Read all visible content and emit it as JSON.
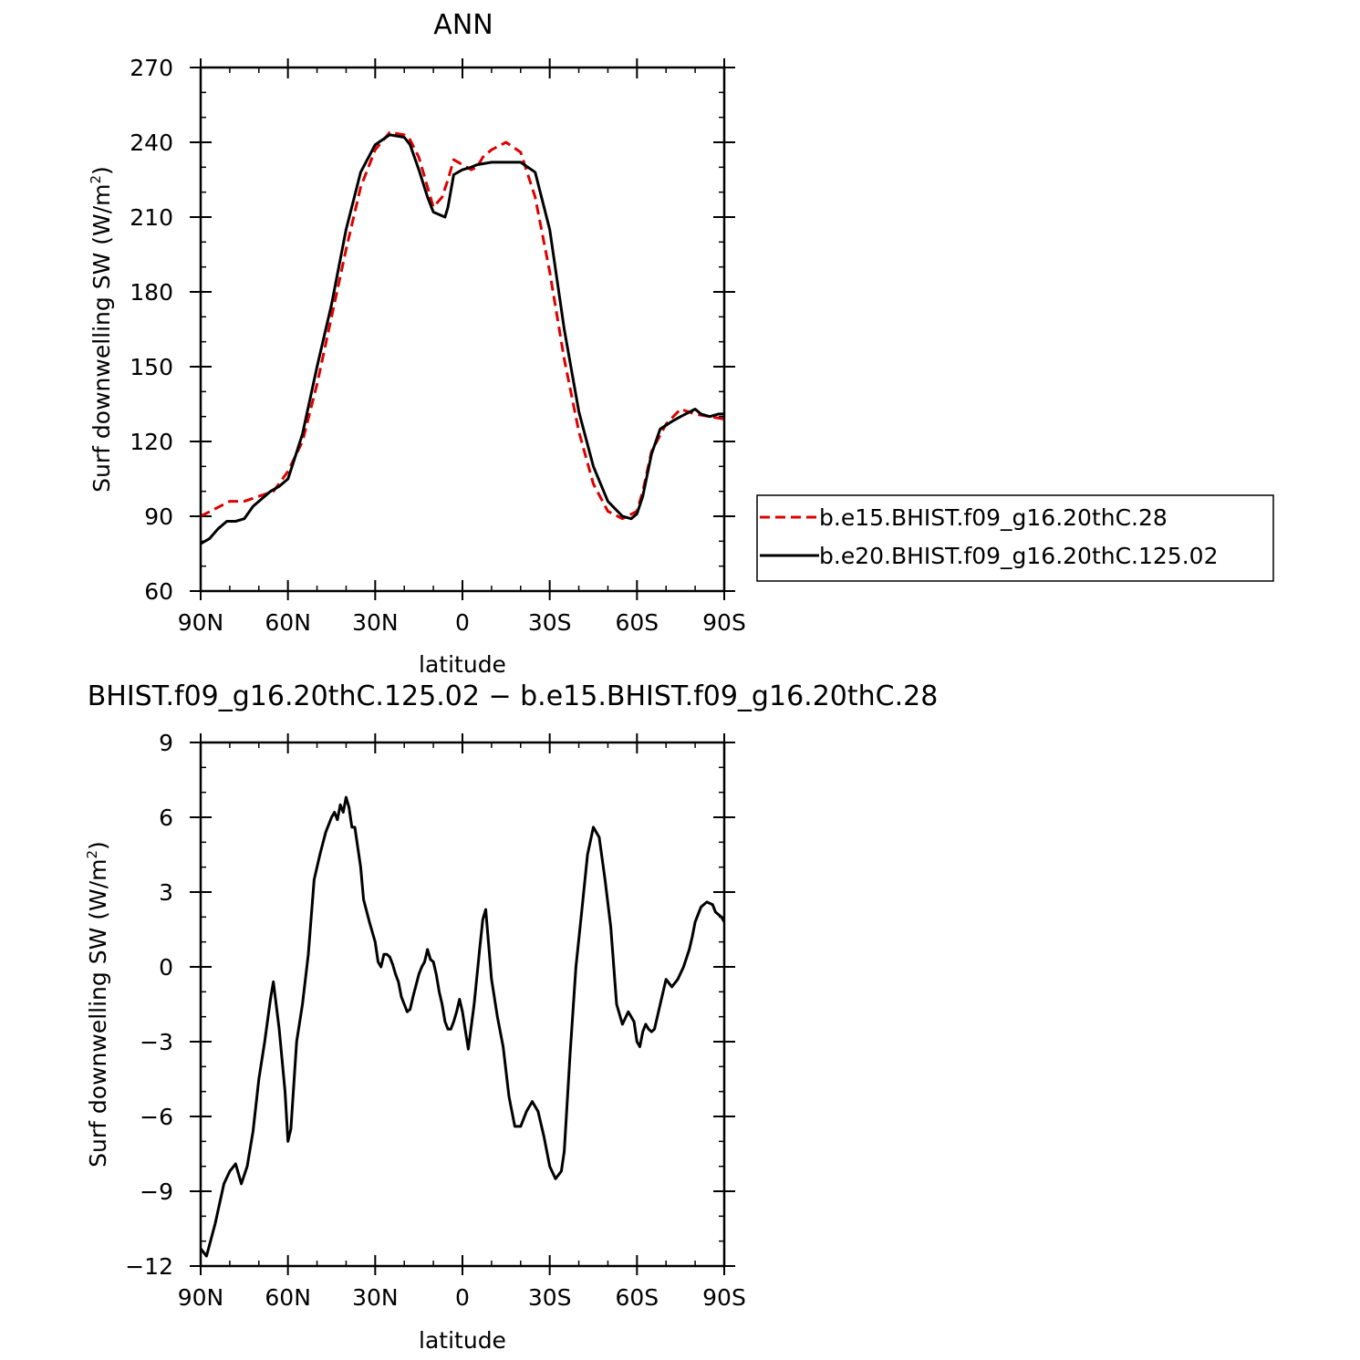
{
  "chart_data": [
    {
      "type": "line",
      "title": "ANN",
      "xlabel": "latitude",
      "ylabel": "Surf downwelling SW (W/m²)",
      "ylabel_main": "Surf downwelling SW (W/m",
      "ylabel_sup": "2",
      "ylabel_close": ")",
      "xlim": [
        90,
        -90
      ],
      "ylim": [
        60,
        270
      ],
      "xticks": [
        90,
        60,
        30,
        0,
        -30,
        -60,
        -90
      ],
      "xtick_labels": [
        "90N",
        "60N",
        "30N",
        "0",
        "30S",
        "60S",
        "90S"
      ],
      "yticks": [
        60,
        90,
        120,
        150,
        180,
        210,
        240,
        270
      ],
      "ytick_labels": [
        "60",
        "90",
        "120",
        "150",
        "180",
        "210",
        "240",
        "270"
      ],
      "legend": {
        "placement": "right",
        "entries": [
          "b.e15.BHIST.f09_g16.20thC.28",
          "b.e20.BHIST.f09_g16.20thC.125.02"
        ]
      },
      "series": [
        {
          "name": "b.e15.BHIST.f09_g16.20thC.28",
          "color": "#dd0000",
          "dash": "dashed",
          "x": [
            90,
            85,
            80,
            75,
            70,
            65,
            60,
            55,
            50,
            45,
            40,
            35,
            30,
            25,
            20,
            18,
            15,
            10,
            7,
            5,
            3,
            0,
            -3,
            -5,
            -7,
            -10,
            -15,
            -20,
            -25,
            -30,
            -35,
            -40,
            -45,
            -50,
            -55,
            -60,
            -62,
            -65,
            -70,
            -75,
            -80,
            -85,
            -90
          ],
          "y": [
            90,
            93,
            96,
            96,
            98,
            100,
            108,
            120,
            143,
            170,
            197,
            222,
            237,
            244,
            243,
            241,
            234,
            214,
            218,
            225,
            233,
            231,
            229,
            230,
            234,
            237,
            240,
            236,
            218,
            188,
            153,
            124,
            103,
            92,
            89,
            92,
            100,
            116,
            127,
            133,
            131,
            130,
            129
          ]
        },
        {
          "name": "b.e20.BHIST.f09_g16.20thC.125.02",
          "color": "#000000",
          "dash": "solid",
          "x": [
            90,
            87,
            84,
            81,
            78,
            75,
            72,
            70,
            66,
            63,
            60,
            58,
            55,
            50,
            45,
            40,
            35,
            30,
            25,
            20,
            18,
            15,
            12,
            10,
            6,
            5,
            3,
            0,
            -3,
            -5,
            -10,
            -15,
            -20,
            -25,
            -30,
            -35,
            -40,
            -45,
            -50,
            -55,
            -58,
            -60,
            -62,
            -65,
            -68,
            -72,
            -75,
            -80,
            -82,
            -85,
            -88,
            -90
          ],
          "y": [
            79,
            81,
            85,
            88,
            88,
            89,
            94,
            96,
            100,
            102,
            105,
            112,
            123,
            150,
            175,
            205,
            228,
            239,
            243,
            242,
            239,
            229,
            218,
            212,
            210,
            214,
            227,
            229,
            230,
            231,
            232,
            232,
            232,
            228,
            205,
            165,
            132,
            110,
            96,
            90,
            89,
            91,
            98,
            115,
            125,
            128,
            130,
            133,
            131,
            130,
            131,
            131
          ]
        }
      ]
    },
    {
      "type": "line",
      "title": "BHIST.f09_g16.20thC.125.02 − b.e15.BHIST.f09_g16.20thC.28",
      "xlabel": "latitude",
      "ylabel": "Surf downwelling SW (W/m²)",
      "ylabel_main": "Surf downwelling SW (W/m",
      "ylabel_sup": "2",
      "ylabel_close": ")",
      "xlim": [
        90,
        -90
      ],
      "ylim": [
        -12,
        9
      ],
      "xticks": [
        90,
        60,
        30,
        0,
        -30,
        -60,
        -90
      ],
      "xtick_labels": [
        "90N",
        "60N",
        "30N",
        "0",
        "30S",
        "60S",
        "90S"
      ],
      "yticks": [
        -12,
        -9,
        -6,
        -3,
        0,
        3,
        6,
        9
      ],
      "ytick_labels": [
        "−12",
        "−9",
        "−6",
        "−3",
        "0",
        "3",
        "6",
        "9"
      ],
      "series": [
        {
          "name": "",
          "color": "#000000",
          "dash": "solid",
          "x": [
            90,
            88,
            85,
            82,
            80,
            78,
            76,
            74,
            72,
            70,
            68,
            66,
            65,
            63,
            61,
            60,
            59,
            57,
            55,
            53,
            51,
            49,
            47,
            45,
            44,
            43,
            42,
            41,
            40,
            39,
            38,
            37,
            35,
            34,
            32,
            30,
            29,
            28,
            27,
            26,
            25,
            24,
            23,
            22,
            21,
            20,
            19,
            18,
            17,
            15,
            14,
            13,
            12,
            11,
            10,
            9,
            8,
            7,
            6,
            5,
            4,
            3,
            2,
            1,
            0,
            -2,
            -4,
            -6,
            -7,
            -8,
            -10,
            -12,
            -14,
            -16,
            -18,
            -20,
            -22,
            -24,
            -26,
            -28,
            -30,
            -32,
            -34,
            -35,
            -37,
            -39,
            -41,
            -43,
            -45,
            -47,
            -49,
            -51,
            -53,
            -55,
            -57,
            -59,
            -60,
            -61,
            -62,
            -63,
            -64,
            -65,
            -66,
            -68,
            -70,
            -72,
            -74,
            -76,
            -78,
            -79,
            -80,
            -82,
            -84,
            -86,
            -87,
            -89,
            -90
          ],
          "y": [
            -11.3,
            -11.6,
            -10.3,
            -8.7,
            -8.2,
            -7.9,
            -8.7,
            -8,
            -6.6,
            -4.5,
            -3,
            -1.3,
            -0.6,
            -2.5,
            -5,
            -7,
            -6.5,
            -3,
            -1.5,
            0.5,
            3.5,
            4.5,
            5.4,
            6,
            6.2,
            5.9,
            6.5,
            6.2,
            6.8,
            6.4,
            5.6,
            5.6,
            4,
            2.7,
            1.8,
            1,
            0.2,
            0,
            0.5,
            0.5,
            0.4,
            0.1,
            -0.3,
            -0.6,
            -1.2,
            -1.5,
            -1.8,
            -1.7,
            -1.2,
            -0.3,
            0,
            0.2,
            0.7,
            0.3,
            0.2,
            -0.3,
            -1,
            -1.5,
            -2.2,
            -2.5,
            -2.5,
            -2.2,
            -1.8,
            -1.3,
            -1.8,
            -3.3,
            -1.5,
            0.8,
            1.9,
            2.3,
            -0.5,
            -2,
            -3.2,
            -5.2,
            -6.4,
            -6.4,
            -5.8,
            -5.4,
            -5.8,
            -6.8,
            -8,
            -8.5,
            -8.2,
            -7.4,
            -3.5,
            0,
            2.2,
            4.5,
            5.6,
            5.2,
            3.5,
            1.6,
            -1.5,
            -2.3,
            -1.8,
            -2.2,
            -3,
            -3.2,
            -2.6,
            -2.3,
            -2.5,
            -2.6,
            -2.5,
            -1.5,
            -0.5,
            -0.8,
            -0.5,
            0,
            0.7,
            1.2,
            1.8,
            2.4,
            2.6,
            2.5,
            2.2,
            2.0,
            1.8
          ]
        }
      ]
    }
  ]
}
